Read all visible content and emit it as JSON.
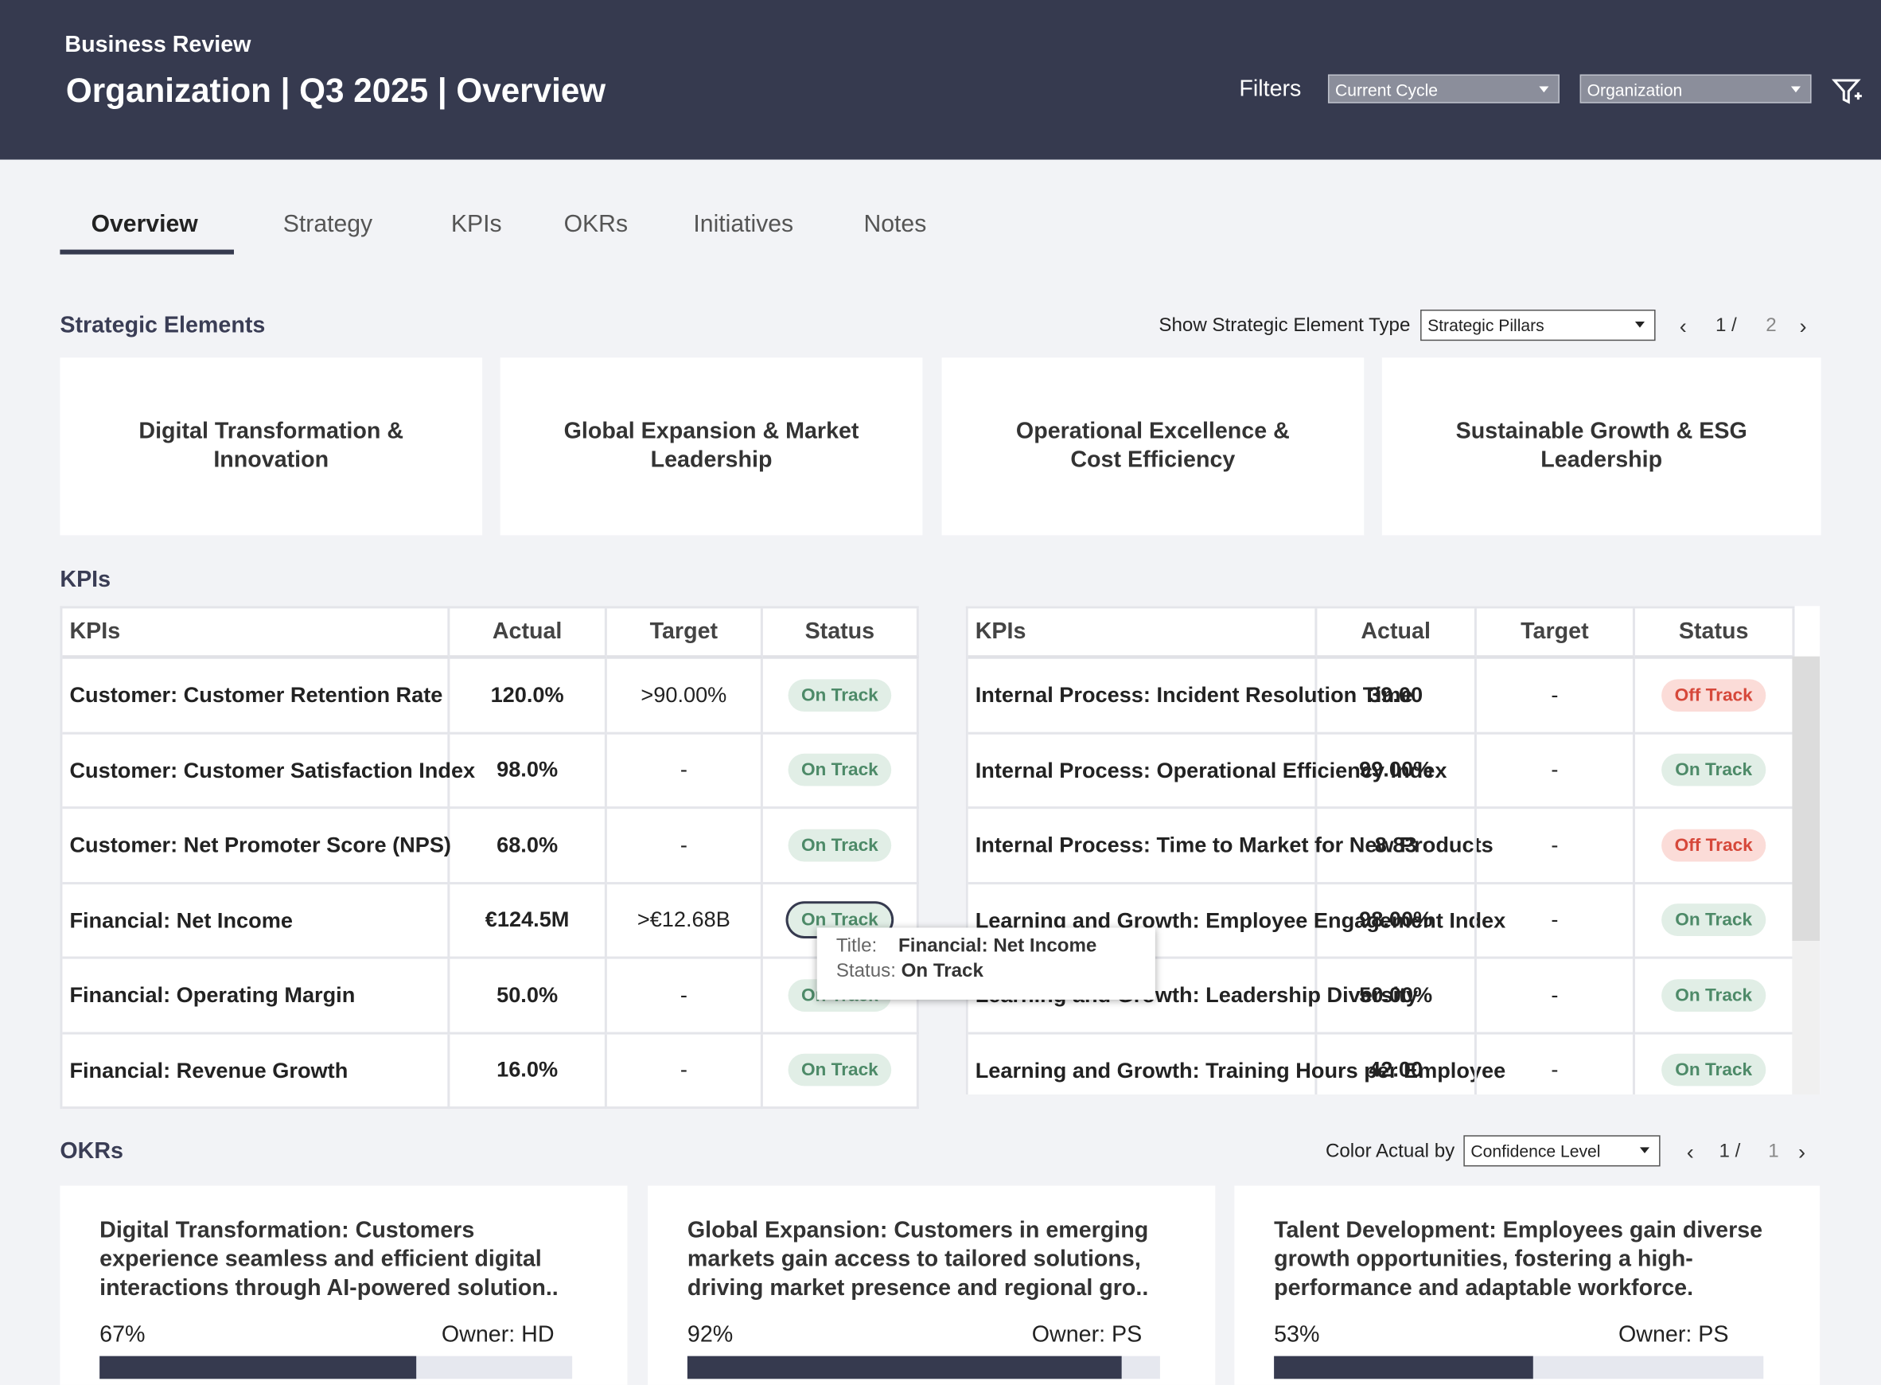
{
  "header": {
    "subtitle": "Business Review",
    "title": "Organization | Q3 2025 | Overview",
    "filters_label": "Filters",
    "filters": [
      "Current Cycle",
      "Organization"
    ]
  },
  "tabs": [
    "Overview",
    "Strategy",
    "KPIs",
    "OKRs",
    "Initiatives",
    "Notes"
  ],
  "strategic": {
    "title": "Strategic Elements",
    "type_label": "Show Strategic Element Type",
    "type_value": "Strategic Pillars",
    "page": "1 /",
    "total": "2",
    "cards": [
      "Digital Transformation & Innovation",
      "Global Expansion & Market Leadership",
      "Operational Excellence & Cost Efficiency",
      "Sustainable Growth & ESG Leadership"
    ]
  },
  "kpis": {
    "title": "KPIs",
    "status_styles": {
      "On Track": {
        "bg": "#e1eee6",
        "fg": "#4d8a68"
      },
      "Off Track": {
        "bg": "#fbdcd8",
        "fg": "#d6483a"
      }
    },
    "tables": [
      {
        "columns": [
          "KPIs",
          "Actual",
          "Target",
          "Status"
        ],
        "rows": [
          [
            "Customer: Customer Retention Rate",
            "120.0%",
            ">90.00%",
            "On Track"
          ],
          [
            "Customer: Customer Satisfaction Index",
            "98.0%",
            "-",
            "On Track"
          ],
          [
            "Customer: Net Promoter Score (NPS)",
            "68.0%",
            "-",
            "On Track"
          ],
          [
            "Financial: Net Income",
            "€124.5M",
            ">€12.68B",
            "On Track"
          ],
          [
            "Financial: Operating Margin",
            "50.0%",
            "-",
            "On Track"
          ],
          [
            "Financial: Revenue Growth",
            "16.0%",
            "-",
            "On Track"
          ]
        ]
      },
      {
        "columns": [
          "KPIs",
          "Actual",
          "Target",
          "Status"
        ],
        "rows": [
          [
            "Internal Process: Incident Resolution Time",
            "39.00",
            "-",
            "Off Track"
          ],
          [
            "Internal Process: Operational Efficiency Index",
            "99.00%",
            "-",
            "On Track"
          ],
          [
            "Internal Process: Time to Market for New Products",
            "8.83",
            "-",
            "Off Track"
          ],
          [
            "Learning and Growth: Employee Engagement Index",
            "98.00%",
            "-",
            "On Track"
          ],
          [
            "Learning and Growth: Leadership Diversity",
            "50.00%",
            "-",
            "On Track"
          ],
          [
            "Learning and Growth: Training Hours per Employee",
            "42.00",
            "-",
            "On Track"
          ]
        ]
      }
    ],
    "tooltip": {
      "title_label": "Title:",
      "title": "Financial: Net Income",
      "status_label": "Status:",
      "status": "On Track"
    }
  },
  "okrs": {
    "title": "OKRs",
    "color_label": "Color Actual by",
    "color_value": "Confidence Level",
    "page": "1 /",
    "total": "1",
    "cards": [
      {
        "text": "Digital Transformation: Customers experience seamless and efficient digital interactions through AI-powered solution..",
        "progress": 67,
        "progress_label": "67%",
        "owner": "Owner: HD"
      },
      {
        "text": "Global Expansion: Customers in emerging markets gain access to tailored solutions, driving market presence and regional gro..",
        "progress": 92,
        "progress_label": "92%",
        "owner": "Owner: PS"
      },
      {
        "text": "Talent Development: Employees gain diverse growth opportunities, fostering a high-performance and adaptable workforce.",
        "progress": 53,
        "progress_label": "53%",
        "owner": "Owner: PS"
      }
    ]
  }
}
